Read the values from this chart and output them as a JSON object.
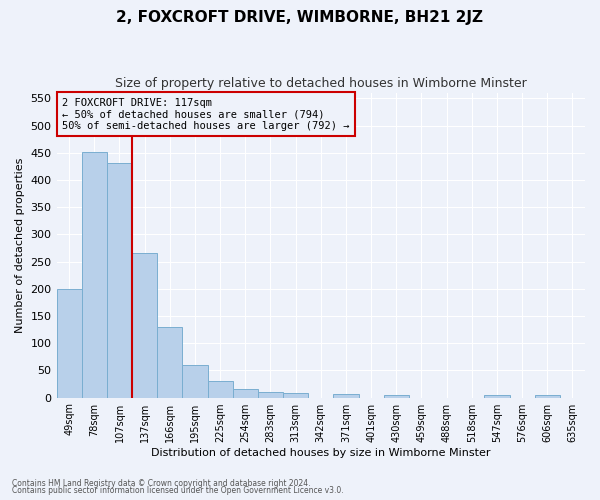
{
  "title": "2, FOXCROFT DRIVE, WIMBORNE, BH21 2JZ",
  "subtitle": "Size of property relative to detached houses in Wimborne Minster",
  "xlabel": "Distribution of detached houses by size in Wimborne Minster",
  "ylabel": "Number of detached properties",
  "footnote1": "Contains HM Land Registry data © Crown copyright and database right 2024.",
  "footnote2": "Contains public sector information licensed under the Open Government Licence v3.0.",
  "annotation_line1": "2 FOXCROFT DRIVE: 117sqm",
  "annotation_line2": "← 50% of detached houses are smaller (794)",
  "annotation_line3": "50% of semi-detached houses are larger (792) →",
  "bar_values": [
    200,
    452,
    432,
    265,
    130,
    60,
    30,
    15,
    10,
    8,
    0,
    6,
    0,
    5,
    0,
    0,
    0,
    5,
    0,
    5,
    0
  ],
  "categories": [
    "49sqm",
    "78sqm",
    "107sqm",
    "137sqm",
    "166sqm",
    "195sqm",
    "225sqm",
    "254sqm",
    "283sqm",
    "313sqm",
    "342sqm",
    "371sqm",
    "401sqm",
    "430sqm",
    "459sqm",
    "488sqm",
    "518sqm",
    "547sqm",
    "576sqm",
    "606sqm",
    "635sqm"
  ],
  "bar_color": "#b8d0ea",
  "bar_edge_color": "#7aaed0",
  "vline_x_bar": 2,
  "vline_color": "#cc0000",
  "ylim": [
    0,
    560
  ],
  "yticks": [
    0,
    50,
    100,
    150,
    200,
    250,
    300,
    350,
    400,
    450,
    500,
    550
  ],
  "bg_color": "#eef2fa",
  "grid_color": "#ffffff",
  "annotation_box_color": "#cc0000",
  "title_fontsize": 11,
  "subtitle_fontsize": 9
}
